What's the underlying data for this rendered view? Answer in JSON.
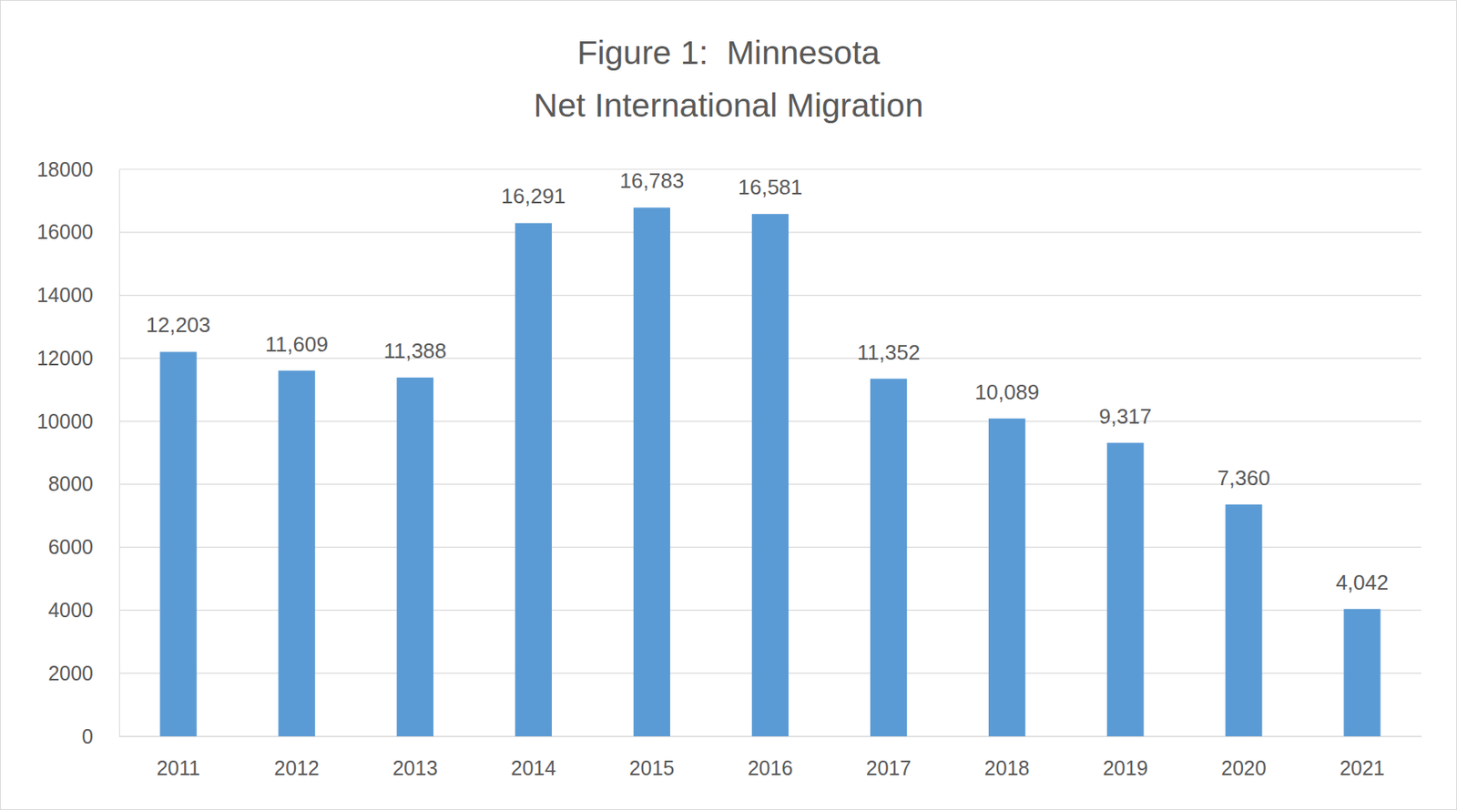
{
  "chart_data": {
    "type": "bar",
    "title": [
      "Figure 1:  Minnesota",
      "Net International Migration"
    ],
    "categories": [
      "2011",
      "2012",
      "2013",
      "2014",
      "2015",
      "2016",
      "2017",
      "2018",
      "2019",
      "2020",
      "2021"
    ],
    "values": [
      12203,
      11609,
      11388,
      16291,
      16783,
      16581,
      11352,
      10089,
      9317,
      7360,
      4042
    ],
    "value_labels": [
      "12,203",
      "11,609",
      "11,388",
      "16,291",
      "16,783",
      "16,581",
      "11,352",
      "10,089",
      "9,317",
      "7,360",
      "4,042"
    ],
    "color": "#5b9bd5",
    "ylim": [
      0,
      18000
    ],
    "yticks": [
      0,
      2000,
      4000,
      6000,
      8000,
      10000,
      12000,
      14000,
      16000,
      18000
    ],
    "grid": true,
    "data_labels": true
  }
}
